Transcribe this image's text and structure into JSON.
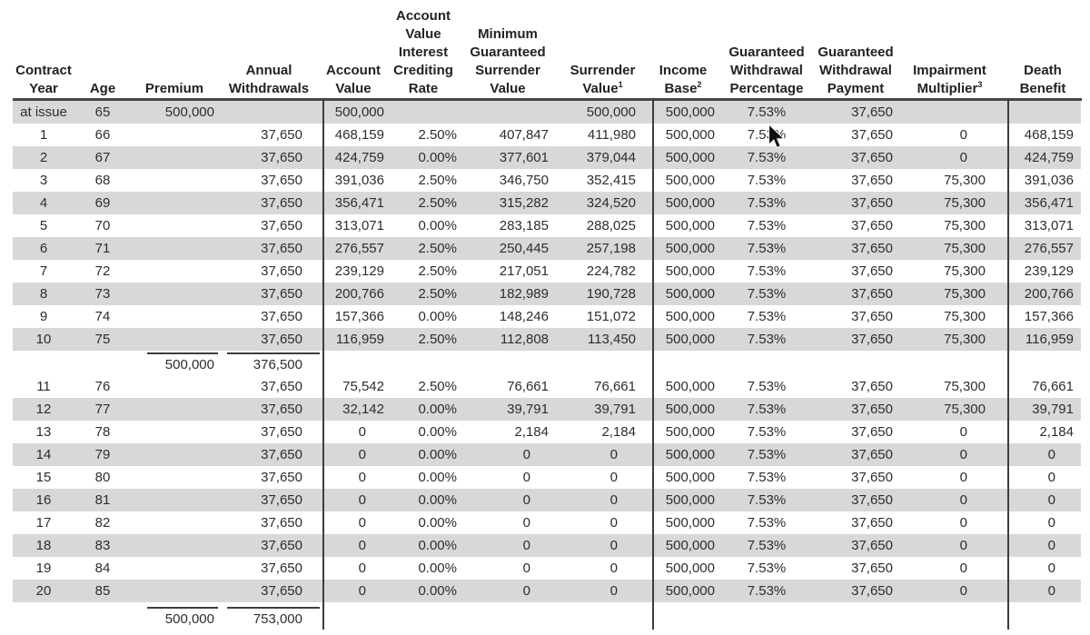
{
  "table": {
    "title": "annuity-illustration",
    "columns": [
      {
        "id": "contract-year",
        "lines": [
          "Contract",
          "Year"
        ]
      },
      {
        "id": "age",
        "lines": [
          "Age"
        ]
      },
      {
        "id": "premium",
        "lines": [
          "Premium"
        ]
      },
      {
        "id": "annual-withdrawals",
        "lines": [
          "Annual",
          "Withdrawals"
        ]
      },
      {
        "id": "account-value",
        "lines": [
          "Account",
          "Value"
        ]
      },
      {
        "id": "account-value-interest-crediting-rate",
        "lines": [
          "Account",
          "Value",
          "Interest",
          "Crediting",
          "Rate"
        ]
      },
      {
        "id": "minimum-guaranteed-surrender-value",
        "lines": [
          "Minimum",
          "Guaranteed",
          "Surrender",
          "Value"
        ]
      },
      {
        "id": "surrender-value",
        "lines": [
          "Surrender",
          "Value"
        ],
        "sup": "1"
      },
      {
        "id": "income-base",
        "lines": [
          "Income",
          "Base"
        ],
        "sup": "2"
      },
      {
        "id": "guaranteed-withdrawal-percentage",
        "lines": [
          "Guaranteed",
          "Withdrawal",
          "Percentage"
        ]
      },
      {
        "id": "guaranteed-withdrawal-payment",
        "lines": [
          "Guaranteed",
          "Withdrawal",
          "Payment"
        ]
      },
      {
        "id": "impairment-multiplier",
        "lines": [
          "Impairment",
          "Multiplier"
        ],
        "sup": "3"
      },
      {
        "id": "death-benefit",
        "lines": [
          "Death",
          "Benefit"
        ]
      }
    ],
    "rows": [
      {
        "type": "data",
        "shaded": true,
        "cells": [
          "at issue",
          "65",
          "500,000",
          "",
          "500,000",
          "",
          "",
          "500,000",
          "500,000",
          "7.53%",
          "37,650",
          "",
          ""
        ]
      },
      {
        "type": "data",
        "shaded": false,
        "cells": [
          "1",
          "66",
          "",
          "37,650",
          "468,159",
          "2.50%",
          "407,847",
          "411,980",
          "500,000",
          "7.53%",
          "37,650",
          "0",
          "468,159"
        ]
      },
      {
        "type": "data",
        "shaded": true,
        "cells": [
          "2",
          "67",
          "",
          "37,650",
          "424,759",
          "0.00%",
          "377,601",
          "379,044",
          "500,000",
          "7.53%",
          "37,650",
          "0",
          "424,759"
        ]
      },
      {
        "type": "data",
        "shaded": false,
        "cells": [
          "3",
          "68",
          "",
          "37,650",
          "391,036",
          "2.50%",
          "346,750",
          "352,415",
          "500,000",
          "7.53%",
          "37,650",
          "75,300",
          "391,036"
        ]
      },
      {
        "type": "data",
        "shaded": true,
        "cells": [
          "4",
          "69",
          "",
          "37,650",
          "356,471",
          "2.50%",
          "315,282",
          "324,520",
          "500,000",
          "7.53%",
          "37,650",
          "75,300",
          "356,471"
        ]
      },
      {
        "type": "data",
        "shaded": false,
        "cells": [
          "5",
          "70",
          "",
          "37,650",
          "313,071",
          "0.00%",
          "283,185",
          "288,025",
          "500,000",
          "7.53%",
          "37,650",
          "75,300",
          "313,071"
        ]
      },
      {
        "type": "data",
        "shaded": true,
        "cells": [
          "6",
          "71",
          "",
          "37,650",
          "276,557",
          "2.50%",
          "250,445",
          "257,198",
          "500,000",
          "7.53%",
          "37,650",
          "75,300",
          "276,557"
        ]
      },
      {
        "type": "data",
        "shaded": false,
        "cells": [
          "7",
          "72",
          "",
          "37,650",
          "239,129",
          "2.50%",
          "217,051",
          "224,782",
          "500,000",
          "7.53%",
          "37,650",
          "75,300",
          "239,129"
        ]
      },
      {
        "type": "data",
        "shaded": true,
        "cells": [
          "8",
          "73",
          "",
          "37,650",
          "200,766",
          "2.50%",
          "182,989",
          "190,728",
          "500,000",
          "7.53%",
          "37,650",
          "75,300",
          "200,766"
        ]
      },
      {
        "type": "data",
        "shaded": false,
        "cells": [
          "9",
          "74",
          "",
          "37,650",
          "157,366",
          "0.00%",
          "148,246",
          "151,072",
          "500,000",
          "7.53%",
          "37,650",
          "75,300",
          "157,366"
        ]
      },
      {
        "type": "data",
        "shaded": true,
        "cells": [
          "10",
          "75",
          "",
          "37,650",
          "116,959",
          "2.50%",
          "112,808",
          "113,450",
          "500,000",
          "7.53%",
          "37,650",
          "75,300",
          "116,959"
        ]
      },
      {
        "type": "subtotal",
        "shaded": false,
        "cells": [
          "",
          "",
          "500,000",
          "376,500",
          "",
          "",
          "",
          "",
          "",
          "",
          "",
          "",
          ""
        ]
      },
      {
        "type": "data",
        "shaded": false,
        "cells": [
          "11",
          "76",
          "",
          "37,650",
          "75,542",
          "2.50%",
          "76,661",
          "76,661",
          "500,000",
          "7.53%",
          "37,650",
          "75,300",
          "76,661"
        ]
      },
      {
        "type": "data",
        "shaded": true,
        "cells": [
          "12",
          "77",
          "",
          "37,650",
          "32,142",
          "0.00%",
          "39,791",
          "39,791",
          "500,000",
          "7.53%",
          "37,650",
          "75,300",
          "39,791"
        ]
      },
      {
        "type": "data",
        "shaded": false,
        "cells": [
          "13",
          "78",
          "",
          "37,650",
          "0",
          "0.00%",
          "2,184",
          "2,184",
          "500,000",
          "7.53%",
          "37,650",
          "0",
          "2,184"
        ]
      },
      {
        "type": "data",
        "shaded": true,
        "cells": [
          "14",
          "79",
          "",
          "37,650",
          "0",
          "0.00%",
          "0",
          "0",
          "500,000",
          "7.53%",
          "37,650",
          "0",
          "0"
        ]
      },
      {
        "type": "data",
        "shaded": false,
        "cells": [
          "15",
          "80",
          "",
          "37,650",
          "0",
          "0.00%",
          "0",
          "0",
          "500,000",
          "7.53%",
          "37,650",
          "0",
          "0"
        ]
      },
      {
        "type": "data",
        "shaded": true,
        "cells": [
          "16",
          "81",
          "",
          "37,650",
          "0",
          "0.00%",
          "0",
          "0",
          "500,000",
          "7.53%",
          "37,650",
          "0",
          "0"
        ]
      },
      {
        "type": "data",
        "shaded": false,
        "cells": [
          "17",
          "82",
          "",
          "37,650",
          "0",
          "0.00%",
          "0",
          "0",
          "500,000",
          "7.53%",
          "37,650",
          "0",
          "0"
        ]
      },
      {
        "type": "data",
        "shaded": true,
        "cells": [
          "18",
          "83",
          "",
          "37,650",
          "0",
          "0.00%",
          "0",
          "0",
          "500,000",
          "7.53%",
          "37,650",
          "0",
          "0"
        ]
      },
      {
        "type": "data",
        "shaded": false,
        "cells": [
          "19",
          "84",
          "",
          "37,650",
          "0",
          "0.00%",
          "0",
          "0",
          "500,000",
          "7.53%",
          "37,650",
          "0",
          "0"
        ]
      },
      {
        "type": "data",
        "shaded": true,
        "cells": [
          "20",
          "85",
          "",
          "37,650",
          "0",
          "0.00%",
          "0",
          "0",
          "500,000",
          "7.53%",
          "37,650",
          "0",
          "0"
        ]
      },
      {
        "type": "subtotal",
        "shaded": false,
        "cells": [
          "",
          "",
          "500,000",
          "753,000",
          "",
          "",
          "",
          "",
          "",
          "",
          "",
          "",
          ""
        ]
      }
    ]
  }
}
